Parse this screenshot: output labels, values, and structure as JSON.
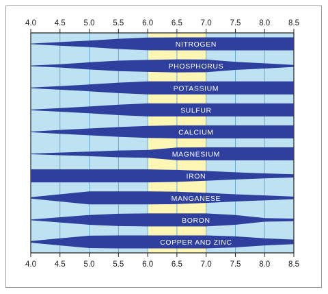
{
  "chart_data": {
    "type": "band",
    "x_ticks": [
      "4.0",
      "4.5",
      "5.0",
      "5.5",
      "6.0",
      "6.5",
      "7.0",
      "7.5",
      "8.0",
      "8.5"
    ],
    "xlim": [
      4.0,
      8.5
    ],
    "highlight_range": [
      6.0,
      7.0
    ],
    "grid": true,
    "colors": {
      "background": "#bfe2f3",
      "highlight": "#fdf6b5",
      "band": "#2e3f9d",
      "grid": "#5aa5cc",
      "axis": "#222222",
      "label": "#ffffff"
    },
    "nutrients": [
      {
        "name": "NITROGEN",
        "profile": [
          [
            4.0,
            0.04
          ],
          [
            4.5,
            0.28
          ],
          [
            5.0,
            0.5
          ],
          [
            5.5,
            0.78
          ],
          [
            6.0,
            0.98
          ],
          [
            6.5,
            1.0
          ],
          [
            7.0,
            1.0
          ],
          [
            7.5,
            1.0
          ],
          [
            8.0,
            1.0
          ],
          [
            8.5,
            1.0
          ]
        ]
      },
      {
        "name": "PHOSPHORUS",
        "profile": [
          [
            4.0,
            0.05
          ],
          [
            4.5,
            0.25
          ],
          [
            5.0,
            0.55
          ],
          [
            5.5,
            0.8
          ],
          [
            6.0,
            0.92
          ],
          [
            6.5,
            1.0
          ],
          [
            7.0,
            0.97
          ],
          [
            7.5,
            0.62
          ],
          [
            8.0,
            0.4
          ],
          [
            8.5,
            0.15
          ]
        ]
      },
      {
        "name": "POTASSIUM",
        "profile": [
          [
            4.0,
            0.05
          ],
          [
            4.5,
            0.28
          ],
          [
            5.0,
            0.52
          ],
          [
            5.5,
            0.8
          ],
          [
            6.0,
            1.0
          ],
          [
            6.5,
            1.0
          ],
          [
            7.0,
            1.0
          ],
          [
            7.5,
            1.0
          ],
          [
            8.0,
            1.0
          ],
          [
            8.5,
            1.0
          ]
        ]
      },
      {
        "name": "SULFUR",
        "profile": [
          [
            4.0,
            0.05
          ],
          [
            4.5,
            0.28
          ],
          [
            5.0,
            0.52
          ],
          [
            5.5,
            0.8
          ],
          [
            6.0,
            1.0
          ],
          [
            6.5,
            1.0
          ],
          [
            7.0,
            1.0
          ],
          [
            7.5,
            1.0
          ],
          [
            8.0,
            1.0
          ],
          [
            8.5,
            1.0
          ]
        ]
      },
      {
        "name": "CALCIUM",
        "profile": [
          [
            4.0,
            0.05
          ],
          [
            4.5,
            0.3
          ],
          [
            5.0,
            0.52
          ],
          [
            5.5,
            0.75
          ],
          [
            6.0,
            0.92
          ],
          [
            6.5,
            1.0
          ],
          [
            7.0,
            1.0
          ],
          [
            7.5,
            1.0
          ],
          [
            8.0,
            1.0
          ],
          [
            8.5,
            1.0
          ]
        ]
      },
      {
        "name": "MAGNESIUM",
        "profile": [
          [
            4.0,
            0.05
          ],
          [
            4.5,
            0.2
          ],
          [
            5.0,
            0.35
          ],
          [
            5.5,
            0.52
          ],
          [
            6.0,
            0.6
          ],
          [
            6.5,
            0.98
          ],
          [
            7.0,
            1.0
          ],
          [
            7.5,
            1.0
          ],
          [
            8.0,
            1.0
          ],
          [
            8.5,
            1.0
          ]
        ]
      },
      {
        "name": "IRON",
        "profile": [
          [
            4.0,
            1.0
          ],
          [
            4.5,
            1.0
          ],
          [
            5.0,
            1.0
          ],
          [
            5.5,
            1.0
          ],
          [
            6.0,
            1.0
          ],
          [
            6.5,
            0.92
          ],
          [
            7.0,
            0.75
          ],
          [
            7.5,
            0.55
          ],
          [
            8.0,
            0.38
          ],
          [
            8.5,
            0.25
          ]
        ]
      },
      {
        "name": "MANGANESE",
        "profile": [
          [
            4.0,
            0.1
          ],
          [
            4.5,
            0.55
          ],
          [
            5.0,
            1.0
          ],
          [
            5.5,
            1.0
          ],
          [
            6.0,
            1.0
          ],
          [
            6.5,
            0.95
          ],
          [
            7.0,
            0.78
          ],
          [
            7.5,
            0.55
          ],
          [
            8.0,
            0.38
          ],
          [
            8.5,
            0.2
          ]
        ]
      },
      {
        "name": "BORON",
        "profile": [
          [
            4.0,
            0.05
          ],
          [
            4.5,
            0.4
          ],
          [
            5.0,
            0.75
          ],
          [
            5.5,
            0.95
          ],
          [
            6.0,
            1.0
          ],
          [
            6.5,
            1.0
          ],
          [
            7.0,
            1.0
          ],
          [
            7.5,
            0.75
          ],
          [
            8.0,
            0.28
          ],
          [
            8.5,
            0.2
          ]
        ]
      },
      {
        "name": "COPPER AND ZINC",
        "profile": [
          [
            4.0,
            0.12
          ],
          [
            4.5,
            0.55
          ],
          [
            5.0,
            0.95
          ],
          [
            5.5,
            1.0
          ],
          [
            6.0,
            1.0
          ],
          [
            6.5,
            1.0
          ],
          [
            7.0,
            1.0
          ],
          [
            7.5,
            0.85
          ],
          [
            8.0,
            0.55
          ],
          [
            8.5,
            0.35
          ]
        ]
      }
    ]
  }
}
